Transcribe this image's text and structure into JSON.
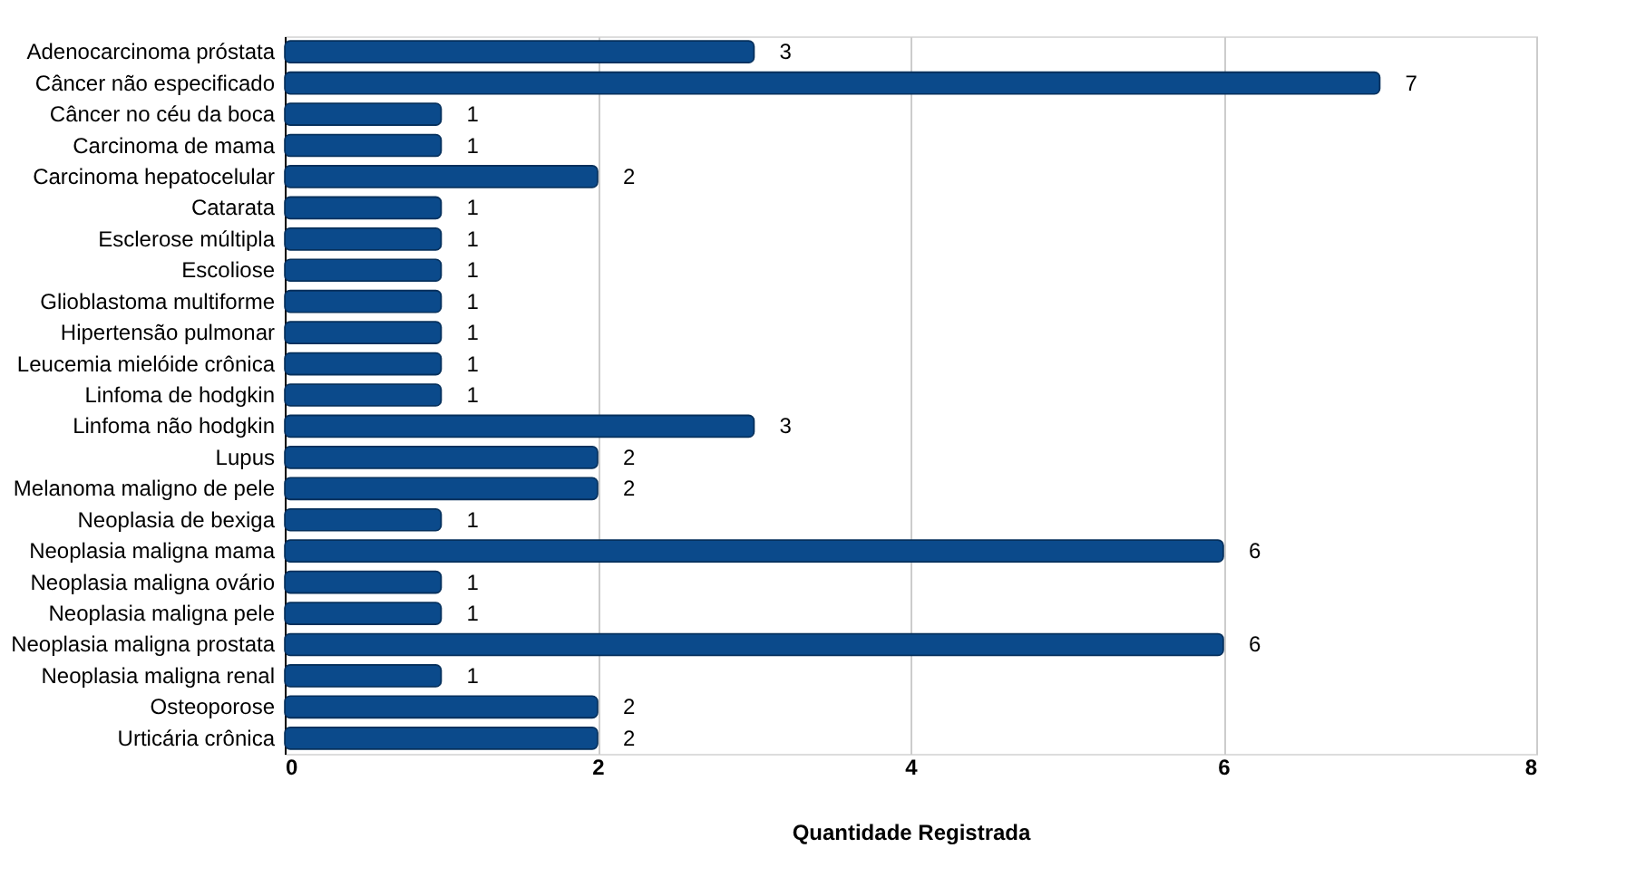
{
  "chart_data": {
    "type": "bar",
    "orientation": "horizontal",
    "categories": [
      "Adenocarcinoma próstata",
      "Câncer não especificado",
      "Câncer no céu da boca",
      "Carcinoma de mama",
      "Carcinoma hepatocelular",
      "Catarata",
      "Esclerose múltipla",
      "Escoliose",
      "Glioblastoma multiforme",
      "Hipertensão pulmonar",
      "Leucemia mielóide crônica",
      "Linfoma de hodgkin",
      "Linfoma não hodgkin",
      "Lupus",
      "Melanoma maligno de pele",
      "Neoplasia de bexiga",
      "Neoplasia maligna mama",
      "Neoplasia maligna ovário",
      "Neoplasia maligna pele",
      "Neoplasia maligna prostata",
      "Neoplasia maligna renal",
      "Osteoporose",
      "Urticária crônica"
    ],
    "values": [
      3,
      7,
      1,
      1,
      2,
      1,
      1,
      1,
      1,
      1,
      1,
      1,
      3,
      2,
      2,
      1,
      6,
      1,
      1,
      6,
      1,
      2,
      2
    ],
    "color": "#0b4a8b",
    "xlabel": "Quantidade Registrada",
    "xlim": [
      0,
      8
    ],
    "xticks": [
      0,
      2,
      4,
      6,
      8
    ],
    "grid": "x",
    "data_labels": true
  }
}
